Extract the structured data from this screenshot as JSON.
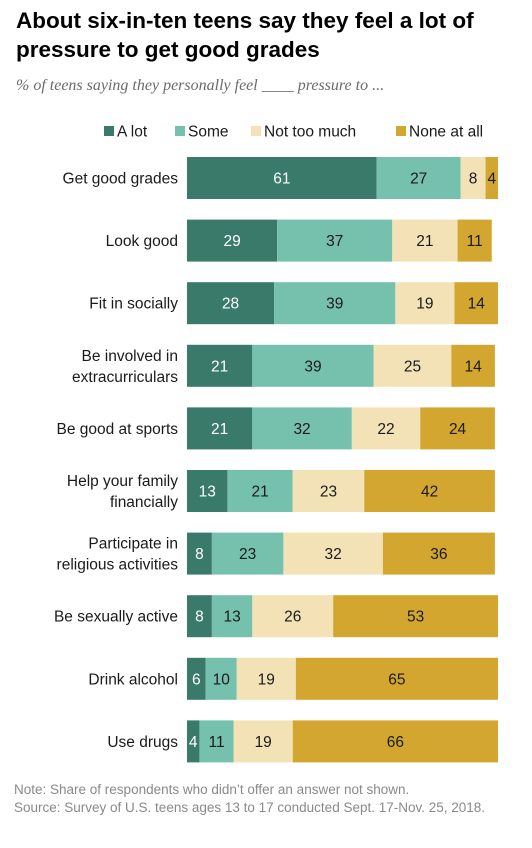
{
  "title": "About six-in-ten teens say they feel a lot of pressure to get good grades",
  "subtitle": "% of teens saying they personally feel ____ pressure to ...",
  "note": "Note: Share of respondents who didn’t offer an answer not shown.",
  "source": "Source: Survey of U.S. teens ages 13 to 17 conducted Sept. 17-Nov. 25, 2018.",
  "colors": {
    "a_lot": "#3a7a6a",
    "some": "#76c0ae",
    "not_too_much": "#f2e2b5",
    "none_at_all": "#d3a630"
  },
  "chart_data": {
    "type": "bar",
    "orientation": "horizontal",
    "stacked": true,
    "legend_position": "top",
    "categories": [
      "Get good grades",
      "Look good",
      "Fit in socially",
      "Be involved in extracurriculars",
      "Be good at sports",
      "Help your family financially",
      "Participate in religious activities",
      "Be sexually active",
      "Drink alcohol",
      "Use drugs"
    ],
    "category_lines": [
      [
        "Get good grades"
      ],
      [
        "Look good"
      ],
      [
        "Fit in socially"
      ],
      [
        "Be involved in",
        "extracurriculars"
      ],
      [
        "Be good at sports"
      ],
      [
        "Help your family",
        "financially"
      ],
      [
        "Participate in",
        "religious activities"
      ],
      [
        "Be sexually active"
      ],
      [
        "Drink alcohol"
      ],
      [
        "Use drugs"
      ]
    ],
    "series": [
      {
        "name": "A lot",
        "values": [
          61,
          29,
          28,
          21,
          21,
          13,
          8,
          8,
          6,
          4
        ]
      },
      {
        "name": "Some",
        "values": [
          27,
          37,
          39,
          39,
          32,
          21,
          23,
          13,
          10,
          11
        ]
      },
      {
        "name": "Not too much",
        "values": [
          8,
          21,
          19,
          25,
          22,
          23,
          32,
          26,
          19,
          19
        ]
      },
      {
        "name": "None at all",
        "values": [
          4,
          11,
          14,
          14,
          24,
          42,
          36,
          53,
          65,
          66
        ]
      }
    ],
    "xlim": [
      0,
      100
    ]
  }
}
